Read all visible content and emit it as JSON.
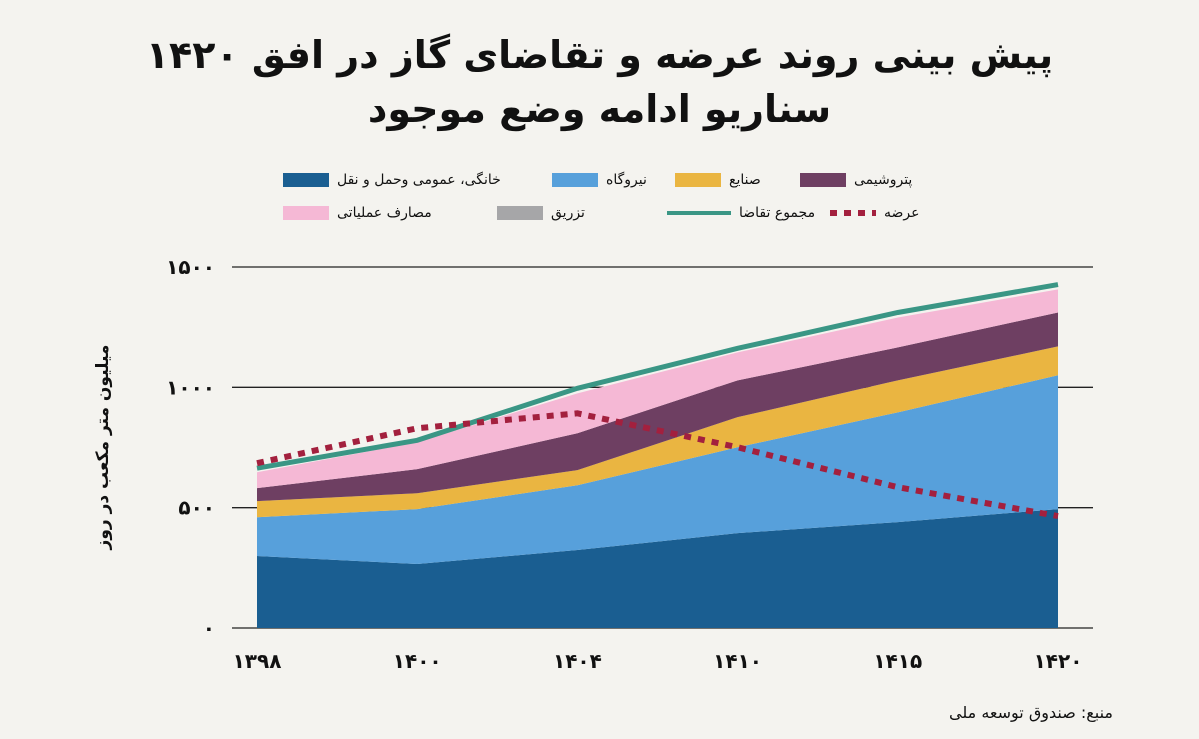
{
  "title": {
    "line1": "پیش بینی روند عرضه و تقاضای گاز در افق ۱۴۲۰",
    "line2": "سناریو ادامه وضع موجود"
  },
  "source": "منبع: صندوق توسعه ملی",
  "chart_data": {
    "type": "area",
    "stacked": true,
    "title": "پیش بینی روند عرضه و تقاضای گاز در افق ۱۴۲۰ — سناریو ادامه وضع موجود",
    "xlabel": "",
    "ylabel": "میلیون متر مکعب در روز",
    "categories": [
      "۱۳۹۸",
      "۱۴۰۰",
      "۱۴۰۴",
      "۱۴۱۰",
      "۱۴۱۵",
      "۱۴۲۰"
    ],
    "yticks": [
      "۰",
      "۵۰۰",
      "۱۰۰۰",
      "۱۵۰۰"
    ],
    "ylim": [
      0,
      1500
    ],
    "grid": true,
    "legend_position": "top",
    "series": [
      {
        "name": "خانگی، عمومی وحمل و نقل",
        "color": "#1a5e91",
        "kind": "area",
        "values": [
          299,
          266,
          324,
          394,
          440,
          494
        ]
      },
      {
        "name": "نیروگاه",
        "color": "#57a0db",
        "kind": "area",
        "values": [
          161,
          228,
          269,
          357,
          456,
          556
        ]
      },
      {
        "name": "صنایع",
        "color": "#eab541",
        "kind": "area",
        "values": [
          67,
          66,
          63,
          125,
          133,
          120
        ]
      },
      {
        "name": "پتروشیمی",
        "color": "#6e3f62",
        "kind": "area",
        "values": [
          54,
          100,
          153,
          153,
          137,
          141
        ]
      },
      {
        "name": "مصارف عملیاتی",
        "color": "#f5b8d5",
        "kind": "area",
        "values": [
          66,
          112,
          166,
          116,
          124,
          96
        ]
      },
      {
        "name": "تزریق",
        "color": "#a6a6a8",
        "kind": "area",
        "values": [
          0,
          0,
          0,
          0,
          0,
          0
        ]
      },
      {
        "name": "مجموع تقاضا",
        "color": "#3a9685",
        "kind": "line",
        "values": [
          664,
          780,
          996,
          1162,
          1311,
          1427
        ]
      },
      {
        "name": "عرضه",
        "color": "#a3203e",
        "kind": "dotted-line",
        "values": [
          685,
          830,
          892,
          751,
          585,
          465
        ]
      }
    ]
  }
}
